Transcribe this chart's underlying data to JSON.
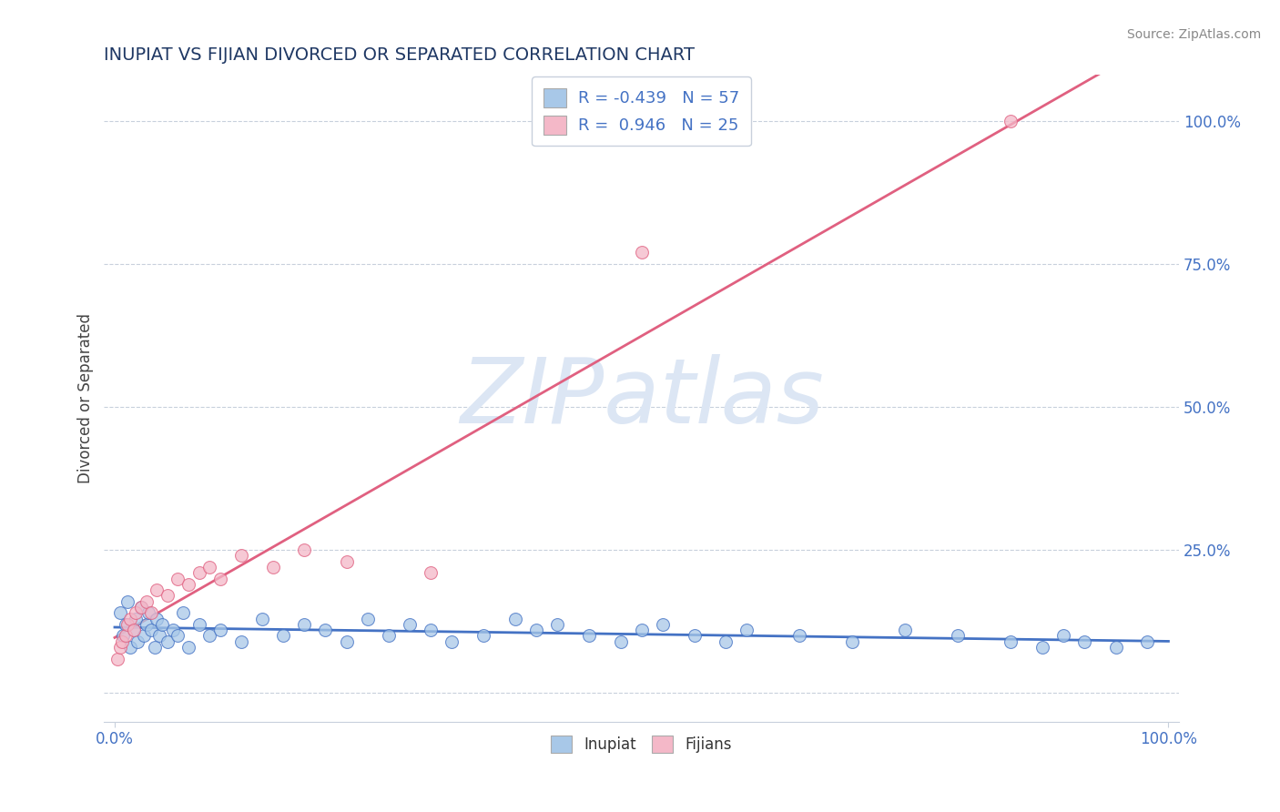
{
  "title": "INUPIAT VS FIJIAN DIVORCED OR SEPARATED CORRELATION CHART",
  "source": "Source: ZipAtlas.com",
  "ylabel": "Divorced or Separated",
  "inupiat_R": -0.439,
  "inupiat_N": 57,
  "fijian_R": 0.946,
  "fijian_N": 25,
  "inupiat_color": "#a8c8e8",
  "fijian_color": "#f4b8c8",
  "inupiat_line_color": "#4472c4",
  "fijian_line_color": "#e06080",
  "title_color": "#1f3864",
  "axis_label_color": "#4472c4",
  "legend_text_color": "#4472c4",
  "background_color": "#ffffff",
  "inupiat_x": [
    0.5,
    0.8,
    1.0,
    1.2,
    1.5,
    1.8,
    2.0,
    2.2,
    2.5,
    2.8,
    3.0,
    3.2,
    3.5,
    3.8,
    4.0,
    4.2,
    4.5,
    5.0,
    5.5,
    6.0,
    6.5,
    7.0,
    8.0,
    9.0,
    10.0,
    12.0,
    14.0,
    16.0,
    18.0,
    20.0,
    22.0,
    24.0,
    26.0,
    28.0,
    30.0,
    32.0,
    35.0,
    38.0,
    40.0,
    42.0,
    45.0,
    48.0,
    50.0,
    52.0,
    55.0,
    58.0,
    60.0,
    65.0,
    70.0,
    75.0,
    80.0,
    85.0,
    88.0,
    90.0,
    92.0,
    95.0,
    98.0
  ],
  "inupiat_y": [
    14.0,
    10.0,
    12.0,
    16.0,
    8.0,
    11.0,
    13.0,
    9.0,
    15.0,
    10.0,
    12.0,
    14.0,
    11.0,
    8.0,
    13.0,
    10.0,
    12.0,
    9.0,
    11.0,
    10.0,
    14.0,
    8.0,
    12.0,
    10.0,
    11.0,
    9.0,
    13.0,
    10.0,
    12.0,
    11.0,
    9.0,
    13.0,
    10.0,
    12.0,
    11.0,
    9.0,
    10.0,
    13.0,
    11.0,
    12.0,
    10.0,
    9.0,
    11.0,
    12.0,
    10.0,
    9.0,
    11.0,
    10.0,
    9.0,
    11.0,
    10.0,
    9.0,
    8.0,
    10.0,
    9.0,
    8.0,
    9.0
  ],
  "fijian_x": [
    0.3,
    0.5,
    0.7,
    1.0,
    1.2,
    1.5,
    1.8,
    2.0,
    2.5,
    3.0,
    3.5,
    4.0,
    5.0,
    6.0,
    7.0,
    8.0,
    9.0,
    10.0,
    12.0,
    15.0,
    18.0,
    22.0,
    30.0,
    85.0,
    50.0
  ],
  "fijian_y": [
    6.0,
    8.0,
    9.0,
    10.0,
    12.0,
    13.0,
    11.0,
    14.0,
    15.0,
    16.0,
    14.0,
    18.0,
    17.0,
    20.0,
    19.0,
    21.0,
    22.0,
    20.0,
    24.0,
    22.0,
    25.0,
    23.0,
    21.0,
    100.0,
    77.0
  ]
}
